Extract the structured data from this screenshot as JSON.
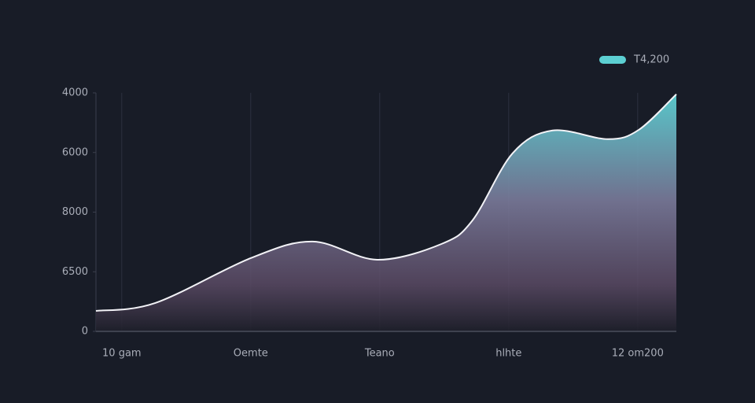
{
  "chart_data": {
    "type": "area",
    "categories": [
      "10 gam",
      "Oemte",
      "Teano",
      "hlhte",
      "12 om200"
    ],
    "xticks": [
      {
        "value": 0,
        "label": "10 gam"
      },
      {
        "value": 1,
        "label": "Oemte"
      },
      {
        "value": 2,
        "label": "Teano"
      },
      {
        "value": 3,
        "label": "hlhte"
      },
      {
        "value": 4,
        "label": "12 om200"
      }
    ],
    "xlim": [
      -0.2,
      4.3
    ],
    "ylim": [
      0,
      4000
    ],
    "yticks": [
      0,
      {
        "value": 1000,
        "label": "6500"
      },
      {
        "value": 2000,
        "label": "8000"
      },
      {
        "value": 3000,
        "label": "6000"
      },
      4000
    ],
    "grid": true,
    "legend": "top-right",
    "series": [
      {
        "name": "T4,200",
        "color": "#5ccfd2",
        "x": [
          -0.2,
          0.26,
          1.0,
          1.48,
          1.98,
          2.48,
          2.72,
          3.03,
          3.34,
          3.77,
          4.01,
          4.3
        ],
        "values": [
          343,
          476,
          1229,
          1506,
          1202,
          1467,
          1863,
          2986,
          3369,
          3224,
          3382,
          3977
        ]
      }
    ]
  }
}
